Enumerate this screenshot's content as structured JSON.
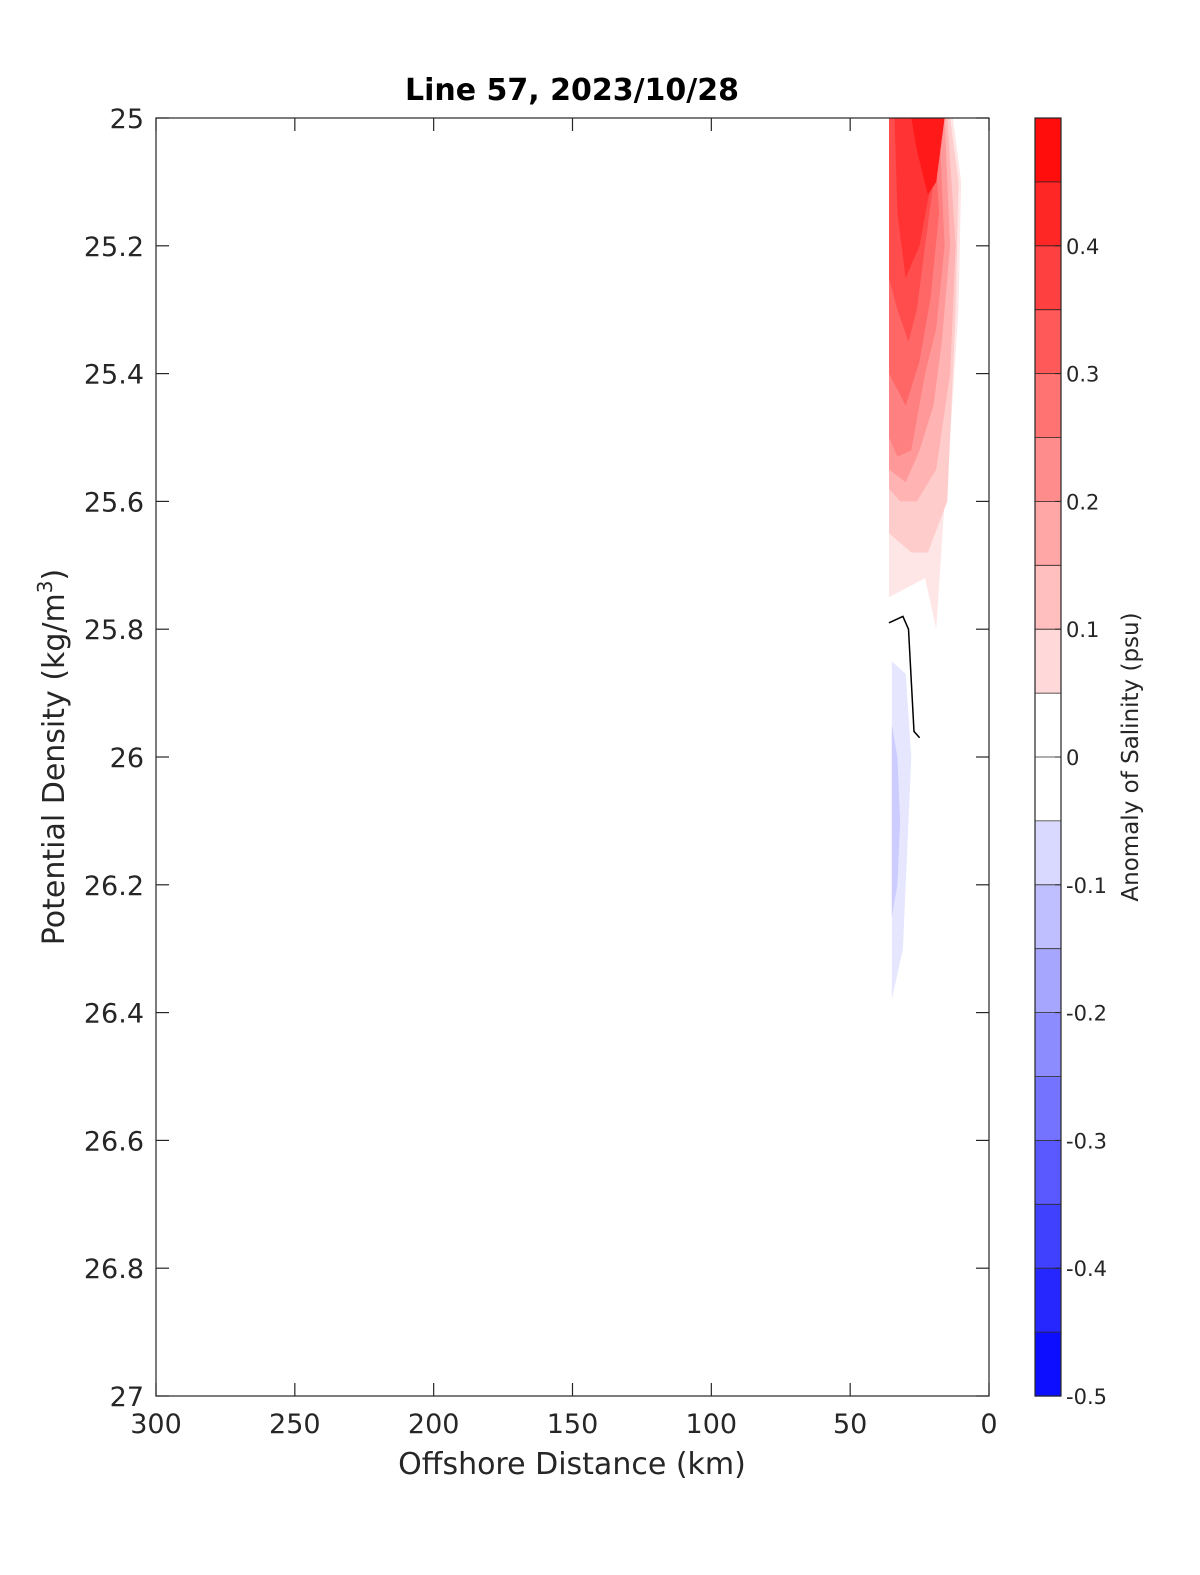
{
  "chart_data": {
    "type": "contour",
    "title": "Line 57, 2023/10/28",
    "xlabel": "Offshore Distance (km)",
    "ylabel_main": "Potential Density (kg/m",
    "ylabel_sup": "3",
    "ylabel_close": ")",
    "xlim": [
      300,
      0
    ],
    "ylim": [
      27,
      25
    ],
    "x_reversed": true,
    "y_reversed": true,
    "xticks": [
      300,
      250,
      200,
      150,
      100,
      50,
      0
    ],
    "xtick_labels": [
      "300",
      "250",
      "200",
      "150",
      "100",
      "50",
      "0"
    ],
    "yticks": [
      25,
      25.2,
      25.4,
      25.6,
      25.8,
      26,
      26.2,
      26.4,
      26.6,
      26.8,
      27
    ],
    "ytick_labels": [
      "25",
      "25.2",
      "25.4",
      "25.6",
      "25.8",
      "26",
      "26.2",
      "26.4",
      "26.6",
      "26.8",
      "27"
    ],
    "grid": false,
    "colorbar": {
      "label": "Anomaly of Salinity (psu)",
      "range": [
        -0.5,
        0.5
      ],
      "level_step": 0.05,
      "ticks": [
        0.4,
        0.3,
        0.2,
        0.1,
        0,
        -0.1,
        -0.2,
        -0.3,
        -0.4,
        -0.5
      ],
      "tick_labels": [
        "0.4",
        "0.3",
        "0.2",
        "0.1",
        "0",
        "-0.1",
        "-0.2",
        "-0.3",
        "-0.4",
        "-0.5"
      ],
      "colormap": "blue-white-red",
      "color_low": "#0000ff",
      "color_mid": "#ffffff",
      "color_high": "#ff0000"
    },
    "contour_regions": [
      {
        "level": 0.05,
        "points": [
          [
            36,
            25.0
          ],
          [
            13,
            25.0
          ],
          [
            10,
            25.1
          ],
          [
            11,
            25.3
          ],
          [
            14,
            25.5
          ],
          [
            16,
            25.6
          ],
          [
            19,
            25.8
          ],
          [
            23,
            25.72
          ],
          [
            36,
            25.75
          ]
        ]
      },
      {
        "level": 0.1,
        "points": [
          [
            36,
            25.0
          ],
          [
            14,
            25.0
          ],
          [
            11,
            25.1
          ],
          [
            12,
            25.3
          ],
          [
            14,
            25.5
          ],
          [
            15,
            25.6
          ],
          [
            22,
            25.68
          ],
          [
            28,
            25.68
          ],
          [
            36,
            25.65
          ]
        ]
      },
      {
        "level": 0.15,
        "points": [
          [
            36,
            25.0
          ],
          [
            15,
            25.0
          ],
          [
            12,
            25.2
          ],
          [
            14,
            25.4
          ],
          [
            19,
            25.55
          ],
          [
            26,
            25.6
          ],
          [
            32,
            25.6
          ],
          [
            36,
            25.58
          ]
        ]
      },
      {
        "level": 0.2,
        "points": [
          [
            36,
            25.0
          ],
          [
            16,
            25.0
          ],
          [
            14,
            25.2
          ],
          [
            17,
            25.35
          ],
          [
            20,
            25.45
          ],
          [
            25,
            25.52
          ],
          [
            30,
            25.57
          ],
          [
            36,
            25.55
          ]
        ]
      },
      {
        "level": 0.25,
        "points": [
          [
            36,
            25.0
          ],
          [
            18,
            25.0
          ],
          [
            16,
            25.2
          ],
          [
            19,
            25.33
          ],
          [
            23,
            25.4
          ],
          [
            28,
            25.52
          ],
          [
            33,
            25.53
          ],
          [
            36,
            25.5
          ]
        ]
      },
      {
        "level": 0.3,
        "points": [
          [
            36,
            25.0
          ],
          [
            20,
            25.0
          ],
          [
            18,
            25.15
          ],
          [
            21,
            25.28
          ],
          [
            25,
            25.38
          ],
          [
            30,
            25.45
          ],
          [
            36,
            25.4
          ]
        ]
      },
      {
        "level": 0.35,
        "points": [
          [
            36,
            25.0
          ],
          [
            22,
            25.0
          ],
          [
            20,
            25.1
          ],
          [
            23,
            25.2
          ],
          [
            26,
            25.3
          ],
          [
            29,
            25.35
          ],
          [
            33,
            25.3
          ],
          [
            36,
            25.25
          ]
        ]
      },
      {
        "level": 0.4,
        "points": [
          [
            34,
            25.0
          ],
          [
            22,
            25.0
          ],
          [
            20,
            25.08
          ],
          [
            25,
            25.2
          ],
          [
            30,
            25.25
          ],
          [
            33,
            25.15
          ]
        ]
      },
      {
        "level": 0.45,
        "points": [
          [
            28,
            25.0
          ],
          [
            16,
            25.0
          ],
          [
            19,
            25.1
          ],
          [
            22,
            25.12
          ],
          [
            26,
            25.05
          ]
        ]
      },
      {
        "level": -0.05,
        "points": [
          [
            35,
            25.85
          ],
          [
            30,
            25.87
          ],
          [
            28,
            26.0
          ],
          [
            31,
            26.3
          ],
          [
            35,
            26.38
          ]
        ]
      },
      {
        "level": -0.1,
        "points": [
          [
            35,
            25.95
          ],
          [
            33,
            26.0
          ],
          [
            32,
            26.1
          ],
          [
            33,
            26.2
          ],
          [
            35,
            26.25
          ]
        ]
      }
    ],
    "zero_contour": [
      [
        36,
        25.79
      ],
      [
        31,
        25.78
      ],
      [
        29,
        25.8
      ],
      [
        27,
        25.96
      ],
      [
        25,
        25.97
      ]
    ]
  }
}
